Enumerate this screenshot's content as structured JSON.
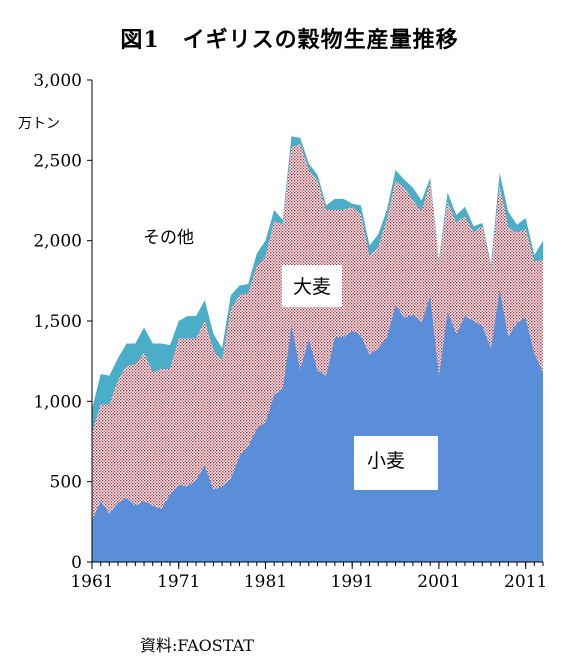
{
  "title": "図1　イギリスの穀物生産量推移",
  "unit_label": "万トン",
  "source": "資料:FAOSTAT",
  "colors": {
    "wheat": "#5b8ed8",
    "barley_dots": "#b02a3a",
    "other": "#4aaec8",
    "axis": "#000000"
  },
  "chart_data": {
    "type": "area",
    "stacked": true,
    "title": "図1　イギリスの穀物生産量推移",
    "ylabel": "万トン",
    "ylim": [
      0,
      3000
    ],
    "yticks": [
      "0",
      "500",
      "1,000",
      "1,500",
      "2,000",
      "2,500",
      "3,000"
    ],
    "ytick_values": [
      0,
      500,
      1000,
      1500,
      2000,
      2500,
      3000
    ],
    "xticks": [
      "1961",
      "1971",
      "1981",
      "1991",
      "2001",
      "2011"
    ],
    "xtick_values": [
      1961,
      1971,
      1981,
      1991,
      2001,
      2011
    ],
    "xlim": [
      1961,
      2013
    ],
    "grid": false,
    "annotations": {
      "wheat": "小麦",
      "barley": "大麦",
      "other": "その他"
    },
    "x": [
      1961,
      1962,
      1963,
      1964,
      1965,
      1966,
      1967,
      1968,
      1969,
      1970,
      1971,
      1972,
      1973,
      1974,
      1975,
      1976,
      1977,
      1978,
      1979,
      1980,
      1981,
      1982,
      1983,
      1984,
      1985,
      1986,
      1987,
      1988,
      1989,
      1990,
      1991,
      1992,
      1993,
      1994,
      1995,
      1996,
      1997,
      1998,
      1999,
      2000,
      2001,
      2002,
      2003,
      2004,
      2005,
      2006,
      2007,
      2008,
      2009,
      2010,
      2011,
      2012,
      2013
    ],
    "series": [
      {
        "name": "小麦",
        "values": [
          260,
          380,
          300,
          370,
          400,
          350,
          380,
          350,
          330,
          420,
          480,
          470,
          510,
          600,
          450,
          470,
          520,
          660,
          720,
          830,
          870,
          1040,
          1080,
          1480,
          1200,
          1390,
          1190,
          1160,
          1400,
          1400,
          1440,
          1410,
          1290,
          1330,
          1400,
          1600,
          1520,
          1540,
          1490,
          1660,
          1160,
          1560,
          1420,
          1530,
          1500,
          1470,
          1330,
          1700,
          1400,
          1490,
          1520,
          1300,
          1180
        ]
      },
      {
        "name": "大麦",
        "values": [
          540,
          600,
          680,
          760,
          820,
          880,
          920,
          830,
          870,
          780,
          910,
          920,
          880,
          900,
          870,
          780,
          1050,
          1000,
          950,
          1010,
          1030,
          1080,
          1020,
          1100,
          1400,
          1050,
          1180,
          1030,
          790,
          790,
          770,
          750,
          610,
          630,
          730,
          770,
          810,
          710,
          690,
          700,
          700,
          680,
          690,
          620,
          550,
          620,
          490,
          640,
          680,
          560,
          550,
          570,
          700
        ]
      },
      {
        "name": "その他",
        "values": [
          150,
          190,
          180,
          140,
          140,
          130,
          160,
          180,
          160,
          150,
          110,
          140,
          140,
          130,
          100,
          80,
          90,
          60,
          60,
          80,
          100,
          70,
          30,
          70,
          40,
          40,
          40,
          30,
          70,
          70,
          20,
          60,
          70,
          80,
          60,
          70,
          50,
          80,
          70,
          30,
          20,
          60,
          50,
          60,
          40,
          20,
          30,
          80,
          100,
          50,
          70,
          40,
          120
        ]
      }
    ]
  }
}
